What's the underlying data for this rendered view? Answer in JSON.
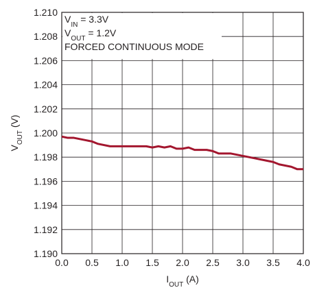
{
  "chart_data": {
    "type": "line",
    "x_label": [
      "I",
      "OUT",
      " (A)"
    ],
    "y_label": [
      "V",
      "OUT",
      " (V)"
    ],
    "annotations": [
      [
        "V",
        "IN",
        " = 3.3V"
      ],
      [
        "V",
        "OUT",
        " = 1.2V"
      ],
      [
        "FORCED CONTINUOUS MODE"
      ]
    ],
    "x": [
      0,
      0.1,
      0.2,
      0.4,
      0.5,
      0.6,
      0.8,
      1.0,
      1.2,
      1.4,
      1.5,
      1.6,
      1.7,
      1.8,
      1.9,
      2.0,
      2.1,
      2.2,
      2.4,
      2.5,
      2.6,
      2.8,
      3.0,
      3.2,
      3.4,
      3.5,
      3.6,
      3.8,
      3.9,
      4.0
    ],
    "series": [
      {
        "color": "#a3162e",
        "values": [
          1.1997,
          1.1996,
          1.1996,
          1.1994,
          1.1993,
          1.1991,
          1.1989,
          1.1989,
          1.1989,
          1.1989,
          1.1988,
          1.1989,
          1.1988,
          1.1989,
          1.1987,
          1.1987,
          1.1988,
          1.1986,
          1.1986,
          1.1985,
          1.1983,
          1.1983,
          1.1981,
          1.1979,
          1.1977,
          1.1976,
          1.1974,
          1.1972,
          1.197,
          1.197
        ]
      }
    ],
    "xlim": [
      0,
      4
    ],
    "xticks": [
      {
        "value": 0,
        "label": "0.0"
      },
      0.5,
      {
        "value": 1,
        "label": "1.0"
      },
      1.5,
      {
        "value": 2,
        "label": "2.0"
      },
      2.5,
      {
        "value": 3,
        "label": "3.0"
      },
      3.5,
      {
        "value": 4,
        "label": "4.0"
      }
    ],
    "ylim": [
      1.19,
      1.21
    ],
    "yticks": [
      {
        "value": 1.19,
        "label": "1.190"
      },
      1.192,
      1.194,
      1.196,
      1.198,
      {
        "value": 1.2,
        "label": "1.200"
      },
      1.202,
      1.204,
      1.206,
      1.208,
      {
        "value": 1.21,
        "label": "1.210"
      }
    ],
    "grid": true
  }
}
